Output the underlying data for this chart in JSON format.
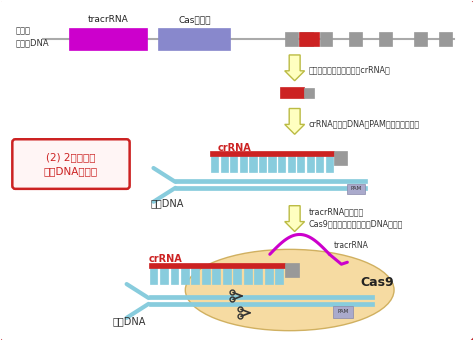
{
  "bg_color": "#ffffff",
  "border_color": "#c0272d",
  "genome_dna_label": "宿主の\nゲノムDNA",
  "tracr_label": "tracrRNA",
  "cas_label": "Cas遺伝子",
  "arrow1_text": "転写されて切断後、成熟crRNAに",
  "arrow2_text": "crRNAが外敵DNAのPAM配列上流に結合",
  "arrow3_text": "tracrRNAが結合、\nCas9が活性向され、外敵DNAが切断",
  "crrna_label": "crRNA",
  "gaiden_label1": "外敵DNA",
  "gaiden_label2": "外敵DNA",
  "cas9_label": "Cas9",
  "tracr_label2": "tracrRNA",
  "crrna_label2": "crRNA",
  "pam_label": "PAM",
  "box_label": "(2) 2回目以降\n外敵DNA侵入時",
  "tracr_color": "#cc00cc",
  "cas_color": "#8888cc",
  "red_color": "#cc2222",
  "gray_color": "#999999",
  "blue_color": "#88ccdd",
  "blue_dark": "#66aacc",
  "arrow_fill": "#ffffc0",
  "arrow_edge": "#bbbb44",
  "tan_color": "#f5d898",
  "pam_color": "#aaaacc",
  "line_color": "#aaaaaa",
  "scissors_color": "#333333"
}
